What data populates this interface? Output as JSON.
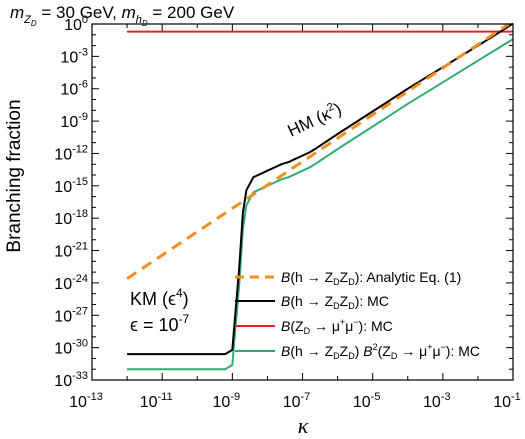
{
  "header": {
    "title_prefix": "m",
    "title_sub1": "Z",
    "title_sub1b": "D",
    "title_mid": " = 30 GeV, ",
    "title_sub2": "h",
    "title_sub2b": "D",
    "title_suffix": " = 200 GeV"
  },
  "chart_data": {
    "type": "line",
    "title": "m_{Z_D} = 30 GeV, m_{h_D} = 200 GeV",
    "xlabel": "κ",
    "ylabel": "Branching fraction",
    "xscale": "log",
    "yscale": "log",
    "xlim": [
      1e-13,
      0.1
    ],
    "ylim": [
      1e-33,
      1
    ],
    "x_ticks": [
      -13,
      -11,
      -9,
      -7,
      -5,
      -3,
      -1
    ],
    "y_ticks": [
      0,
      -3,
      -6,
      -9,
      -12,
      -15,
      -18,
      -21,
      -24,
      -27,
      -30,
      -33
    ],
    "grid": false,
    "legend_position": "bottom-right",
    "series": [
      {
        "name": "B(h → Z_D Z_D): Analytic Eq. (1)",
        "color": "#f28e1e",
        "dash": "dashed",
        "log10_x": [
          -12,
          -1.12
        ],
        "log10_y": [
          -23.6,
          0
        ]
      },
      {
        "name": "B(h → Z_D Z_D): MC",
        "color": "#000000",
        "dash": "solid",
        "log10_x": [
          -12,
          -11,
          -10,
          -9.6,
          -9.2,
          -9.0,
          -8.8,
          -8.7,
          -8.6,
          -8.5,
          -8.4,
          -8.2,
          -8.0,
          -7.8,
          -7.6,
          -7.4,
          -7.2,
          -7.0,
          -6.8,
          -6.6,
          -6.0,
          -5.0,
          -4.0,
          -3.0,
          -2.0,
          -1.5,
          -1.0
        ],
        "log10_y": [
          -30.6,
          -30.6,
          -30.6,
          -30.6,
          -30.6,
          -30.2,
          -22.5,
          -17.5,
          -15.4,
          -14.8,
          -14.2,
          -13.9,
          -13.6,
          -13.3,
          -13.0,
          -12.8,
          -12.5,
          -12.2,
          -11.9,
          -11.5,
          -10.2,
          -8.1,
          -6.0,
          -4.0,
          -2.0,
          -1.0,
          0.05
        ]
      },
      {
        "name": "B(Z_D → μ⁺μ⁻): MC",
        "color": "#e8221c",
        "dash": "solid",
        "log10_x": [
          -12,
          -1
        ],
        "log10_y": [
          -0.7,
          -0.7
        ]
      },
      {
        "name": "B(h → Z_D Z_D) B²(Z_D → μ⁺μ⁻): MC",
        "color": "#2fab6e",
        "dash": "solid",
        "log10_x": [
          -12,
          -11,
          -10,
          -9.6,
          -9.2,
          -9.0,
          -8.8,
          -8.7,
          -8.6,
          -8.5,
          -8.4,
          -8.2,
          -8.0,
          -7.8,
          -7.6,
          -7.4,
          -7.2,
          -7.0,
          -6.8,
          -6.6,
          -6.0,
          -5.0,
          -4.0,
          -3.0,
          -2.0,
          -1.5,
          -1.0
        ],
        "log10_y": [
          -32.0,
          -32.0,
          -32.0,
          -32.0,
          -32.0,
          -31.6,
          -24.0,
          -19.0,
          -16.8,
          -16.2,
          -15.6,
          -15.3,
          -15.0,
          -14.7,
          -14.4,
          -14.2,
          -13.9,
          -13.6,
          -13.3,
          -12.9,
          -11.6,
          -9.5,
          -7.4,
          -5.4,
          -3.4,
          -2.4,
          -1.4
        ]
      }
    ],
    "annotations": {
      "hm": "HM (κ",
      "hm_exp": "2",
      "hm_close": ")",
      "km": "KM (ϵ",
      "km_exp": "4",
      "km_close": ")",
      "eps": "ϵ = 10",
      "eps_exp": "-7"
    }
  }
}
